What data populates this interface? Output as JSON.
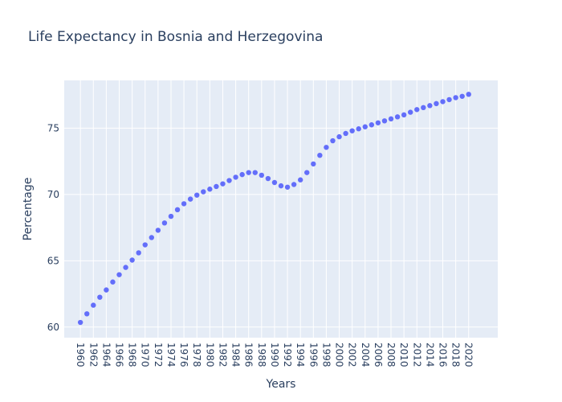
{
  "chart_data": {
    "type": "scatter",
    "title": "Life Expectancy in Bosnia and Herzegovina",
    "xlabel": "Years",
    "ylabel": "Percentage",
    "xlim": [
      1957.5,
      2024.5
    ],
    "ylim": [
      59.2,
      78.6
    ],
    "x_ticks": [
      "1960",
      "1962",
      "1964",
      "1966",
      "1968",
      "1970",
      "1972",
      "1974",
      "1976",
      "1978",
      "1980",
      "1982",
      "1984",
      "1986",
      "1988",
      "1990",
      "1992",
      "1994",
      "1996",
      "1998",
      "2000",
      "2002",
      "2004",
      "2006",
      "2008",
      "2010",
      "2012",
      "2014",
      "2016",
      "2018",
      "2020"
    ],
    "y_ticks": [
      60,
      65,
      70,
      75
    ],
    "grid": true,
    "marker_color": "#636efa",
    "plot_bg": "#e5ecf6",
    "series": [
      {
        "x": [
          1960,
          1961,
          1962,
          1963,
          1964,
          1965,
          1966,
          1967,
          1968,
          1969,
          1970,
          1971,
          1972,
          1973,
          1974,
          1975,
          1976,
          1977,
          1978,
          1979,
          1980,
          1981,
          1982,
          1983,
          1984,
          1985,
          1986,
          1987,
          1988,
          1989,
          1990,
          1991,
          1992,
          1993,
          1994,
          1995,
          1996,
          1997,
          1998,
          1999,
          2000,
          2001,
          2002,
          2003,
          2004,
          2005,
          2006,
          2007,
          2008,
          2009,
          2010,
          2011,
          2012,
          2013,
          2014,
          2015,
          2016,
          2017,
          2018,
          2019,
          2020
        ],
        "y": [
          60.35,
          61.0,
          61.65,
          62.25,
          62.8,
          63.4,
          63.95,
          64.5,
          65.05,
          65.6,
          66.2,
          66.75,
          67.3,
          67.85,
          68.35,
          68.85,
          69.3,
          69.65,
          69.95,
          70.2,
          70.4,
          70.6,
          70.8,
          71.05,
          71.3,
          71.5,
          71.65,
          71.65,
          71.45,
          71.2,
          70.9,
          70.65,
          70.55,
          70.75,
          71.1,
          71.65,
          72.3,
          72.95,
          73.55,
          74.05,
          74.35,
          74.6,
          74.8,
          74.95,
          75.1,
          75.25,
          75.4,
          75.55,
          75.7,
          75.85,
          76.0,
          76.2,
          76.4,
          76.55,
          76.7,
          76.85,
          77.0,
          77.15,
          77.3,
          77.4,
          77.55
        ]
      }
    ]
  }
}
